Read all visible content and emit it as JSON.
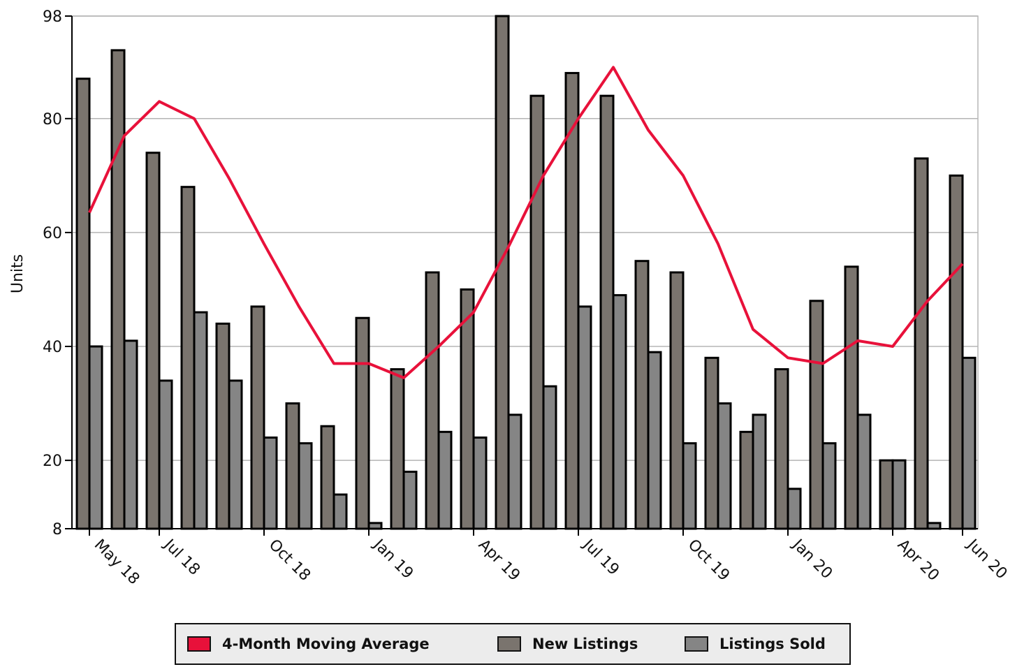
{
  "chart_data": {
    "type": "bar",
    "ylabel": "Units",
    "ylim": [
      8,
      98
    ],
    "yticks": [
      8,
      20,
      40,
      60,
      80,
      98
    ],
    "months": [
      "May 18",
      "Jun 18",
      "Jul 18",
      "Aug 18",
      "Sep 18",
      "Oct 18",
      "Nov 18",
      "Dec 18",
      "Jan 19",
      "Feb 19",
      "Mar 19",
      "Apr 19",
      "May 19",
      "Jun 19",
      "Jul 19",
      "Aug 19",
      "Sep 19",
      "Oct 19",
      "Nov 19",
      "Dec 19",
      "Jan 20",
      "Feb 20",
      "Mar 20",
      "Apr 20",
      "May 20",
      "Jun 20"
    ],
    "xtick_labels": [
      {
        "index": 0,
        "label": "May 18"
      },
      {
        "index": 2,
        "label": "Jul 18"
      },
      {
        "index": 5,
        "label": "Oct 18"
      },
      {
        "index": 8,
        "label": "Jan 19"
      },
      {
        "index": 11,
        "label": "Apr 19"
      },
      {
        "index": 14,
        "label": "Jul 19"
      },
      {
        "index": 17,
        "label": "Oct 19"
      },
      {
        "index": 20,
        "label": "Jan 20"
      },
      {
        "index": 23,
        "label": "Apr 20"
      },
      {
        "index": 25,
        "label": "Jun 20"
      }
    ],
    "grid": true,
    "legend_position": "bottom",
    "series": [
      {
        "name": "New Listings",
        "kind": "bar",
        "color": "#7a746e",
        "values": [
          87,
          92,
          74,
          68,
          44,
          47,
          30,
          26,
          45,
          36,
          53,
          50,
          98,
          84,
          88,
          84,
          55,
          53,
          38,
          25,
          36,
          48,
          54,
          20,
          73,
          70
        ]
      },
      {
        "name": "Listings Sold",
        "kind": "bar",
        "color": "#858585",
        "values": [
          40,
          41,
          34,
          46,
          34,
          24,
          23,
          14,
          9,
          18,
          25,
          24,
          28,
          33,
          47,
          49,
          39,
          23,
          30,
          28,
          15,
          23,
          28,
          20,
          9,
          38
        ]
      },
      {
        "name": "4-Month Moving Average",
        "kind": "line",
        "color": "#e8113a",
        "values": [
          63.5,
          77,
          83,
          80,
          69.5,
          58,
          47,
          37,
          37,
          34.5,
          40,
          46,
          57.5,
          70,
          80,
          89,
          78,
          70,
          58,
          43,
          38,
          37,
          41,
          40,
          48,
          54.5
        ]
      }
    ]
  },
  "legend": {
    "items": [
      {
        "label": "4-Month Moving Average",
        "color": "#e8113a"
      },
      {
        "label": "New Listings",
        "color": "#7a746e"
      },
      {
        "label": "Listings Sold",
        "color": "#858585"
      }
    ]
  }
}
